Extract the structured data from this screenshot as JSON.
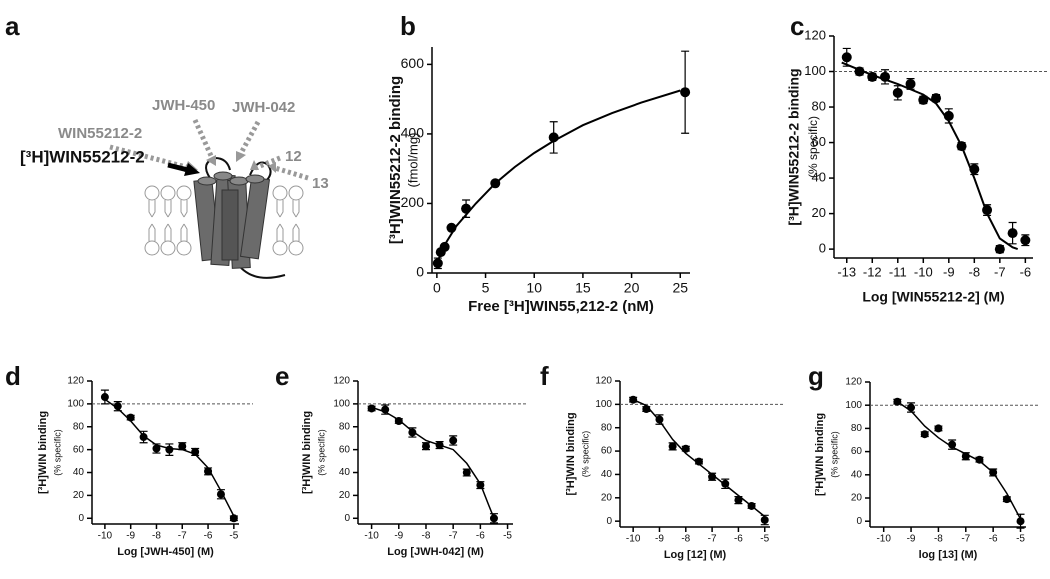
{
  "diagram": {
    "panel": "a",
    "radioligand": "[³H]WIN55212-2",
    "ligands": [
      "WIN55212-2",
      "JWH-450",
      "JWH-042",
      "12",
      "13"
    ]
  },
  "chart_data": [
    {
      "type": "scatter",
      "panel": "b",
      "ylabel": "[³H]WIN55212-2 binding",
      "ylabel_sub": "(fmol/mg)",
      "xlabel": "Free [³H]WIN55,212-2 (nM)",
      "xlim": [
        -0.5,
        26
      ],
      "xticks": [
        0,
        5,
        10,
        15,
        20,
        25
      ],
      "ylim": [
        0,
        650
      ],
      "yticks": [
        0,
        200,
        400,
        600
      ],
      "points": {
        "x": [
          0.1,
          0.4,
          0.8,
          1.5,
          3,
          6,
          12,
          25.5
        ],
        "values": [
          28,
          60,
          75,
          130,
          185,
          258,
          390,
          520
        ],
        "errors": [
          15,
          5,
          5,
          5,
          25,
          5,
          45,
          118
        ]
      },
      "curve": {
        "x": [
          0,
          1,
          2,
          4,
          6,
          8,
          10,
          12,
          15,
          18,
          21,
          25
        ],
        "values": [
          30,
          90,
          135,
          200,
          258,
          305,
          345,
          380,
          425,
          460,
          490,
          525
        ]
      }
    },
    {
      "type": "scatter",
      "panel": "c",
      "ylabel": "[³H]WIN55212-2 binding",
      "ylabel_sub": "(% specific)",
      "xlabel": "Log [WIN55212-2] (M)",
      "xlim": [
        -13.5,
        -5.7
      ],
      "xticks": [
        -13,
        -12,
        -11,
        -10,
        -9,
        -8,
        -7,
        -6
      ],
      "ylim": [
        -5,
        120
      ],
      "yticks": [
        0,
        20,
        40,
        60,
        80,
        100,
        120
      ],
      "ref_line": 100,
      "points": {
        "x": [
          -13,
          -12.5,
          -12,
          -11.5,
          -11,
          -10.5,
          -10,
          -9.5,
          -9,
          -8.5,
          -8,
          -7.5,
          -7,
          -6.5,
          -6
        ],
        "values": [
          108,
          100,
          97,
          97,
          88,
          93,
          84,
          85,
          75,
          58,
          45,
          22,
          0,
          9,
          5
        ],
        "errors": [
          5,
          2,
          2,
          4,
          4,
          3,
          2,
          2,
          4,
          2,
          3,
          3,
          2,
          6,
          3
        ]
      },
      "curve": {
        "x": [
          -13.2,
          -12,
          -11,
          -10,
          -9.5,
          -9,
          -8.5,
          -8,
          -7.5,
          -7,
          -6.5,
          -6.3
        ],
        "values": [
          105,
          98,
          93,
          87,
          82,
          72,
          58,
          40,
          20,
          6,
          1,
          0
        ]
      }
    },
    {
      "type": "scatter",
      "panel": "d",
      "ylabel": "[³H]WIN binding",
      "ylabel_sub": "(% specific)",
      "xlabel": "Log [JWH-450] (M)",
      "xlim": [
        -10.5,
        -4.8
      ],
      "xticks": [
        -10,
        -9,
        -8,
        -7,
        -6,
        -5
      ],
      "ylim": [
        -5,
        120
      ],
      "yticks": [
        0,
        20,
        40,
        60,
        80,
        100,
        120
      ],
      "ref_line": 100,
      "points": {
        "x": [
          -10,
          -9.5,
          -9,
          -8.5,
          -8,
          -7.5,
          -7,
          -6.5,
          -6,
          -5.5,
          -5
        ],
        "values": [
          106,
          98,
          88,
          71,
          61,
          60,
          63,
          58,
          41,
          21,
          0
        ],
        "errors": [
          6,
          4,
          2,
          5,
          4,
          5,
          3,
          3,
          3,
          4,
          2
        ]
      },
      "curve": {
        "x": [
          -10,
          -9.5,
          -9,
          -8.5,
          -8,
          -7.5,
          -7,
          -6.5,
          -6,
          -5.5,
          -5
        ],
        "values": [
          104,
          96,
          85,
          72,
          64,
          61,
          60,
          56,
          44,
          24,
          2
        ]
      }
    },
    {
      "type": "scatter",
      "panel": "e",
      "ylabel": "[³H]WIN binding",
      "ylabel_sub": "(% specific)",
      "xlabel": "Log [JWH-042] (M)",
      "xlim": [
        -10.5,
        -4.8
      ],
      "xticks": [
        -10,
        -9,
        -8,
        -7,
        -6,
        -5
      ],
      "ylim": [
        -5,
        120
      ],
      "yticks": [
        0,
        20,
        40,
        60,
        80,
        100,
        120
      ],
      "ref_line": 100,
      "points": {
        "x": [
          -10,
          -9.5,
          -9,
          -8.5,
          -8,
          -7.5,
          -7,
          -6.5,
          -6,
          -5.5
        ],
        "values": [
          96,
          95,
          85,
          75,
          63,
          64,
          68,
          40,
          29,
          0
        ],
        "errors": [
          2,
          4,
          2,
          4,
          3,
          3,
          4,
          3,
          3,
          4
        ]
      },
      "curve": {
        "x": [
          -10,
          -9.5,
          -9,
          -8.5,
          -8,
          -7.5,
          -7,
          -6.5,
          -6,
          -5.7,
          -5.5
        ],
        "values": [
          97,
          93,
          86,
          76,
          68,
          64,
          60,
          48,
          30,
          12,
          0
        ]
      }
    },
    {
      "type": "scatter",
      "panel": "f",
      "ylabel": "[³H]WIN binding",
      "ylabel_sub": "(% specific)",
      "xlabel": "Log [12] (M)",
      "xlim": [
        -10.5,
        -4.8
      ],
      "xticks": [
        -10,
        -9,
        -8,
        -7,
        -6,
        -5
      ],
      "ylim": [
        -5,
        120
      ],
      "yticks": [
        0,
        20,
        40,
        60,
        80,
        100,
        120
      ],
      "ref_line": 100,
      "points": {
        "x": [
          -10,
          -9.5,
          -9,
          -8.5,
          -8,
          -7.5,
          -7,
          -6.5,
          -6,
          -5.5,
          -5
        ],
        "values": [
          104,
          96,
          87,
          64,
          62,
          51,
          38,
          32,
          18,
          13,
          1
        ],
        "errors": [
          2,
          2,
          4,
          3,
          2,
          2,
          3,
          4,
          3,
          2,
          4
        ]
      },
      "curve": {
        "x": [
          -10,
          -9.5,
          -9,
          -8.5,
          -8,
          -7.5,
          -7,
          -6.5,
          -6,
          -5.5,
          -5
        ],
        "values": [
          104,
          99,
          86,
          70,
          58,
          49,
          40,
          31,
          22,
          13,
          4
        ]
      }
    },
    {
      "type": "scatter",
      "panel": "g",
      "ylabel": "[³H]WIN binding",
      "ylabel_sub": "(% specific)",
      "xlabel": "log [13] (M)",
      "xlim": [
        -10.5,
        -4.8
      ],
      "xticks": [
        -10,
        -9,
        -8,
        -7,
        -6,
        -5
      ],
      "ylim": [
        -5,
        120
      ],
      "yticks": [
        0,
        20,
        40,
        60,
        80,
        100,
        120
      ],
      "ref_line": 100,
      "points": {
        "x": [
          -9.5,
          -9,
          -8.5,
          -8,
          -7.5,
          -7,
          -6.5,
          -6,
          -5.5,
          -5
        ],
        "values": [
          103,
          98,
          75,
          80,
          66,
          56,
          53,
          42,
          19,
          0
        ],
        "errors": [
          2,
          4,
          2,
          2,
          4,
          3,
          2,
          3,
          2,
          6
        ]
      },
      "curve": {
        "x": [
          -9.5,
          -9,
          -8.5,
          -8,
          -7.5,
          -7,
          -6.5,
          -6,
          -5.5,
          -5
        ],
        "values": [
          103,
          95,
          82,
          72,
          64,
          58,
          52,
          42,
          24,
          2
        ]
      }
    }
  ]
}
